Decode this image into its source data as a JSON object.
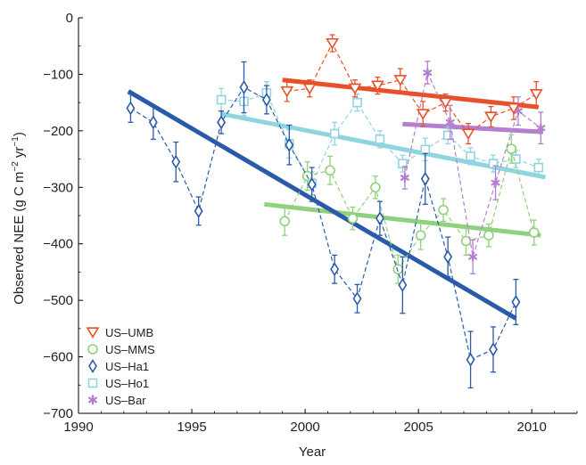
{
  "chart_data": {
    "type": "line",
    "title": "",
    "xlabel": "Year",
    "ylabel_parts": {
      "main": "Observed NEE (g C m",
      "exp1": "−2",
      "mid": " yr",
      "exp2": "−1",
      "end": ")"
    },
    "xlim": [
      1990,
      2012
    ],
    "ylim": [
      -700,
      0
    ],
    "xticks": [
      1990,
      1995,
      2000,
      2005,
      2010
    ],
    "xtick_labels": [
      "1990",
      "1995",
      "2000",
      "2005",
      "2010"
    ],
    "yticks": [
      0,
      -100,
      -200,
      -300,
      -400,
      -500,
      -600,
      -700
    ],
    "ytick_labels": [
      "0",
      "−100",
      "−200",
      "−300",
      "−400",
      "−500",
      "−600",
      "−700"
    ],
    "legend_position": "bottom-left",
    "grid": false,
    "series": [
      {
        "name": "US–UMB",
        "color": "#e8502a",
        "marker": "triangle-down",
        "x": [
          1999.2,
          2000.2,
          2001.2,
          2002.2,
          2003.2,
          2004.2,
          2005.2,
          2006.2,
          2007.2,
          2008.2,
          2009.2,
          2010.2
        ],
        "y": [
          -130,
          -125,
          -45,
          -125,
          -120,
          -110,
          -170,
          -150,
          -205,
          -175,
          -160,
          -135
        ],
        "err": [
          18,
          15,
          15,
          15,
          15,
          20,
          22,
          15,
          18,
          18,
          20,
          22
        ],
        "trend": [
          [
            1999,
            -110
          ],
          [
            2010.3,
            -158
          ]
        ]
      },
      {
        "name": "US–MMS",
        "color": "#8fd17e",
        "marker": "circle",
        "x": [
          1999.1,
          2000.1,
          2001.1,
          2002.1,
          2003.1,
          2004.1,
          2005.1,
          2006.1,
          2007.1,
          2008.1,
          2009.1,
          2010.1
        ],
        "y": [
          -360,
          -280,
          -270,
          -355,
          -300,
          -445,
          -385,
          -340,
          -395,
          -385,
          -232,
          -380
        ],
        "err": [
          25,
          25,
          25,
          20,
          20,
          25,
          25,
          20,
          25,
          20,
          25,
          22
        ],
        "trend": [
          [
            1998.2,
            -330
          ],
          [
            2010.4,
            -385
          ]
        ]
      },
      {
        "name": "US–Ha1",
        "color": "#2a5ba8",
        "marker": "diamond",
        "x": [
          1992.3,
          1993.3,
          1994.3,
          1995.3,
          1996.3,
          1997.3,
          1998.3,
          1999.3,
          2000.3,
          2001.3,
          2002.3,
          2003.3,
          2004.3,
          2005.3,
          2006.3,
          2007.3,
          2008.3,
          2009.3
        ],
        "y": [
          -160,
          -185,
          -255,
          -342,
          -185,
          -123,
          -145,
          -225,
          -295,
          -445,
          -497,
          -355,
          -473,
          -285,
          -423,
          -605,
          -587,
          -503
        ],
        "err": [
          25,
          30,
          35,
          25,
          20,
          45,
          25,
          35,
          30,
          25,
          25,
          30,
          50,
          45,
          35,
          50,
          40,
          40
        ],
        "trend": [
          [
            1992.2,
            -130
          ],
          [
            2009.3,
            -532
          ]
        ]
      },
      {
        "name": "US–Ho1",
        "color": "#8fd5e0",
        "marker": "square",
        "x": [
          1996.3,
          1997.3,
          1998.3,
          1999.3,
          2000.3,
          2001.3,
          2002.3,
          2003.3,
          2004.3,
          2005.3,
          2006.3,
          2007.3,
          2008.3,
          2009.3,
          2010.3
        ],
        "y": [
          -145,
          -148,
          -133,
          -223,
          -293,
          -205,
          -150,
          -215,
          -258,
          -233,
          -208,
          -245,
          -258,
          -250,
          -265
        ],
        "err": [
          20,
          25,
          20,
          25,
          20,
          20,
          15,
          15,
          15,
          20,
          15,
          15,
          15,
          15,
          15
        ],
        "trend": [
          [
            1996.3,
            -170
          ],
          [
            2010.6,
            -282
          ]
        ]
      },
      {
        "name": "US–Bar",
        "color": "#b57fd0",
        "marker": "asterisk",
        "x": [
          2004.4,
          2005.4,
          2006.4,
          2007.4,
          2008.4,
          2009.4,
          2010.4
        ],
        "y": [
          -283,
          -97,
          -185,
          -423,
          -292,
          -165,
          -195
        ],
        "err": [
          20,
          20,
          30,
          30,
          30,
          25,
          28
        ],
        "trend": [
          [
            2004.3,
            -188
          ],
          [
            2010.5,
            -202
          ]
        ]
      }
    ]
  }
}
